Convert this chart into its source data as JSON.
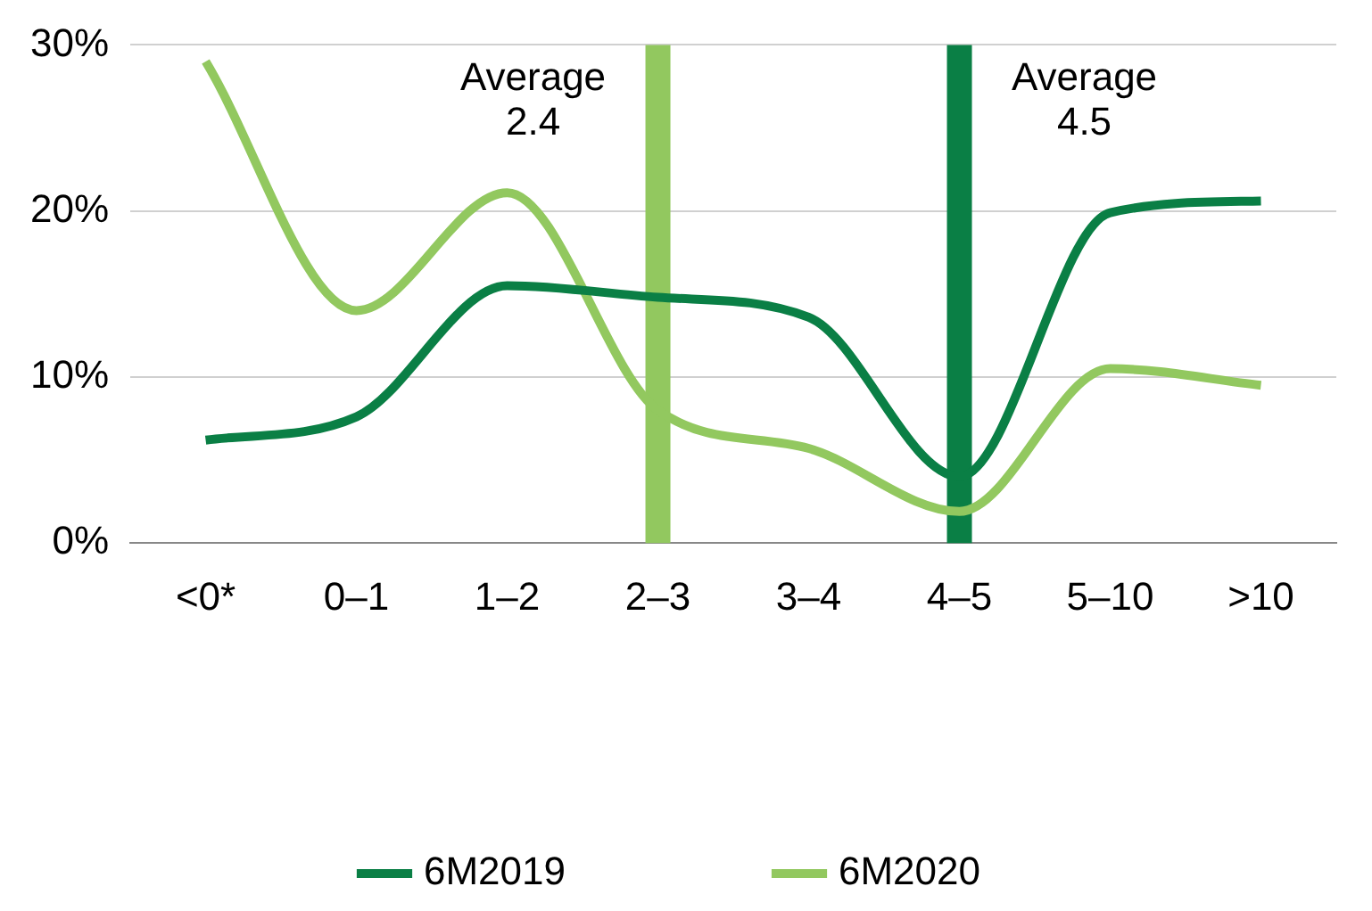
{
  "chart_data": {
    "type": "line",
    "categories": [
      "<0*",
      "0–1",
      "1–2",
      "2–3",
      "3–4",
      "4–5",
      "5–10",
      ">10"
    ],
    "series": [
      {
        "name": "6M2019",
        "color": "#0a7f45",
        "values": [
          6.2,
          7.6,
          15.5,
          14.8,
          13.6,
          4.0,
          19.9,
          20.6
        ]
      },
      {
        "name": "6M2020",
        "color": "#92c85f",
        "values": [
          29.0,
          14.0,
          21.1,
          8.0,
          5.7,
          1.9,
          10.5,
          9.5
        ]
      }
    ],
    "ylim": [
      0,
      30
    ],
    "yticks": [
      {
        "value": 0,
        "label": "0%"
      },
      {
        "value": 10,
        "label": "10%"
      },
      {
        "value": 20,
        "label": "20%"
      },
      {
        "value": 30,
        "label": "30%"
      }
    ],
    "ref_lines": [
      {
        "axis": "x",
        "value": "2–3",
        "label": "Average 2.4",
        "color": "#92c85f"
      },
      {
        "axis": "x",
        "value": "4–5",
        "label": "Average 4.5",
        "color": "#0a7f45"
      }
    ],
    "grid": "y",
    "legend": "bottom",
    "marker": "none",
    "line_style": "solid"
  }
}
